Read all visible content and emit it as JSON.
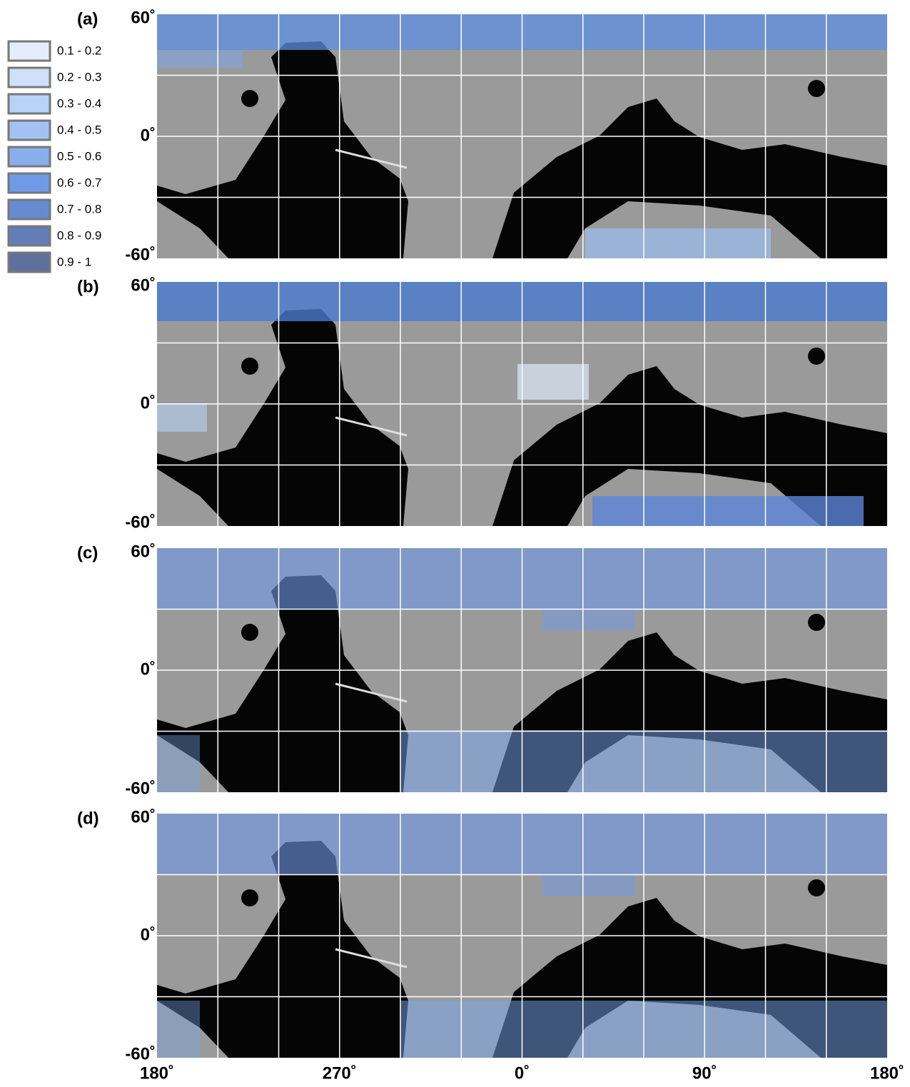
{
  "legend": {
    "items": [
      {
        "label": "0.1 - 0.2",
        "color": "#e4eefb"
      },
      {
        "label": "0.2 - 0.3",
        "color": "#cfe0f8"
      },
      {
        "label": "0.3 - 0.4",
        "color": "#b8d3f7"
      },
      {
        "label": "0.4 - 0.5",
        "color": "#a3c2f2"
      },
      {
        "label": "0.5 - 0.6",
        "color": "#89aeee"
      },
      {
        "label": "0.6 - 0.7",
        "color": "#6f9ae8"
      },
      {
        "label": "0.7 - 0.8",
        "color": "#668bd2"
      },
      {
        "label": "0.8 - 0.9",
        "color": "#637db8"
      },
      {
        "label": "0.9 - 1",
        "color": "#5f6f9e"
      }
    ]
  },
  "panels": [
    {
      "label": "(a)",
      "yticks": [
        "60˚",
        "0˚",
        "-60˚"
      ]
    },
    {
      "label": "(b)",
      "yticks": [
        "60˚",
        "0˚",
        "-60˚"
      ]
    },
    {
      "label": "(c)",
      "yticks": [
        "60˚",
        "0˚",
        "-60˚"
      ]
    },
    {
      "label": "(d)",
      "yticks": [
        "60˚",
        "0˚",
        "-60˚"
      ]
    }
  ],
  "xticks": [
    "180˚",
    "270˚",
    "0˚",
    "90˚",
    "180˚"
  ]
}
